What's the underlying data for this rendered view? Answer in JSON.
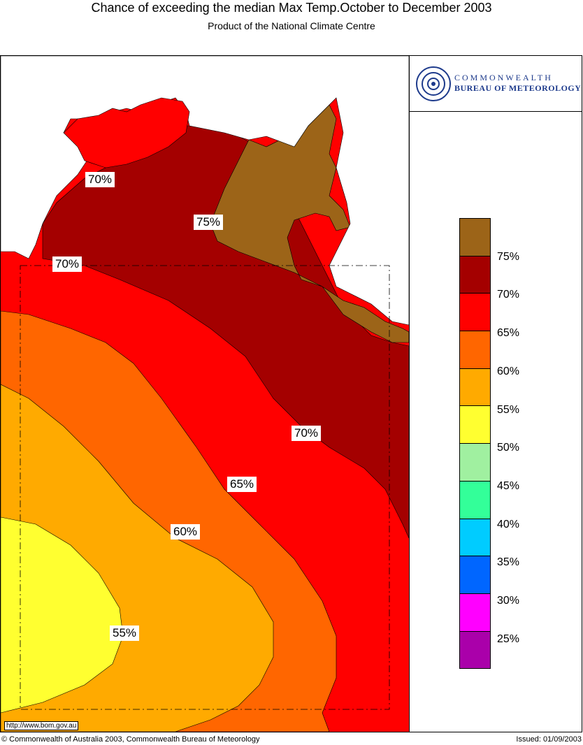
{
  "header": {
    "title": "Chance of exceeding the median Max Temp.October to December 2003",
    "subtitle": "Product of the National Climate Centre"
  },
  "logo": {
    "line1": "COMMONWEALTH",
    "line2": "BUREAU OF METEOROLOGY",
    "icon": "bom-swirl-icon"
  },
  "legend": {
    "colors": [
      "#9c6418",
      "#a40000",
      "#ff0000",
      "#ff6600",
      "#ffaa00",
      "#ffff30",
      "#a0f0a0",
      "#33ff99",
      "#00ccff",
      "#0066ff",
      "#ff00ff",
      "#aa00aa"
    ],
    "labels": [
      "75%",
      "70%",
      "65%",
      "60%",
      "55%",
      "50%",
      "45%",
      "40%",
      "35%",
      "30%",
      "25%"
    ]
  },
  "map": {
    "contour_labels": [
      "70%",
      "75%",
      "70%",
      "70%",
      "65%",
      "60%",
      "55%"
    ]
  },
  "footer": {
    "url": "http://www.bom.gov.au",
    "copyright": "© Commonwealth of Australia 2003, Commonwealth Bureau of Meteorology",
    "issued": "Issued: 01/09/2003"
  }
}
